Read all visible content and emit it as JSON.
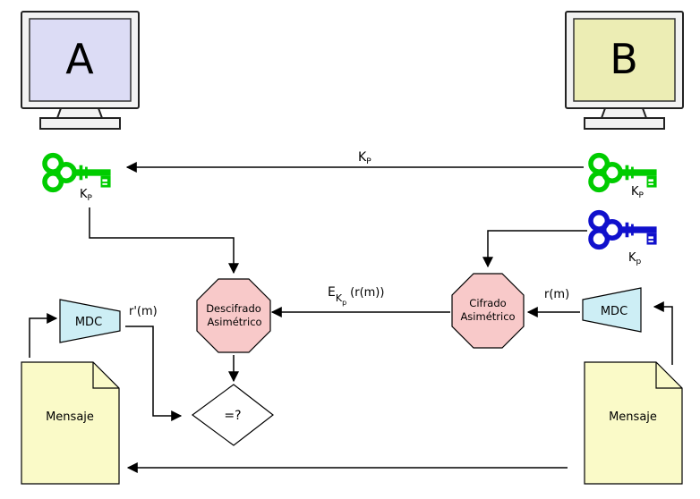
{
  "computers": {
    "a": {
      "label": "A",
      "screen_color": "#dcdcf5"
    },
    "b": {
      "label": "B",
      "screen_color": "#ecedb4"
    }
  },
  "keys": {
    "public_color": "#00cc00",
    "private_color": "#1010cc",
    "label_kp": "K",
    "label_kp_sub": "P",
    "label_kp_lower_sub": "p"
  },
  "arrows": {
    "top_label": "K",
    "top_label_sub": "P",
    "cipher_label_e": "E",
    "cipher_label_k": "K",
    "cipher_label_sub": "p",
    "cipher_label_rest": "(r(m))",
    "rm_label": "r(m)",
    "rprime_label": "r'(m)"
  },
  "blocks": {
    "decrypt": {
      "line1": "Descifrado",
      "line2": "Asimétrico",
      "fill": "#f8c9c9"
    },
    "encrypt": {
      "line1": "Cifrado",
      "line2": "Asimétrico",
      "fill": "#f8c9c9"
    },
    "mdc_left": "MDC",
    "mdc_right": "MDC",
    "mdc_fill": "#cdeef5",
    "compare": "=?",
    "msg_left": "Mensaje",
    "msg_right": "Mensaje",
    "doc_fill": "#fafac8"
  }
}
